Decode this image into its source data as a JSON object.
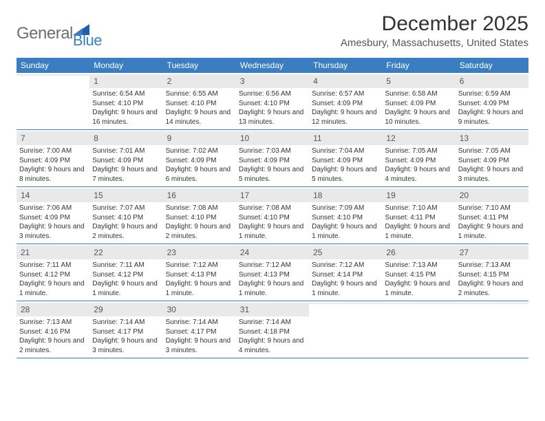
{
  "logo": {
    "text1": "General",
    "text2": "Blue"
  },
  "title": "December 2025",
  "subtitle": "Amesbury, Massachusetts, United States",
  "theme": {
    "header_bg": "#3a7ec1",
    "daynum_bg": "#e9e9e9",
    "rule": "#3a7ec1"
  },
  "days_of_week": [
    "Sunday",
    "Monday",
    "Tuesday",
    "Wednesday",
    "Thursday",
    "Friday",
    "Saturday"
  ],
  "weeks": [
    [
      {
        "n": "",
        "sr": "",
        "ss": "",
        "dl": ""
      },
      {
        "n": "1",
        "sr": "Sunrise: 6:54 AM",
        "ss": "Sunset: 4:10 PM",
        "dl": "Daylight: 9 hours and 16 minutes."
      },
      {
        "n": "2",
        "sr": "Sunrise: 6:55 AM",
        "ss": "Sunset: 4:10 PM",
        "dl": "Daylight: 9 hours and 14 minutes."
      },
      {
        "n": "3",
        "sr": "Sunrise: 6:56 AM",
        "ss": "Sunset: 4:10 PM",
        "dl": "Daylight: 9 hours and 13 minutes."
      },
      {
        "n": "4",
        "sr": "Sunrise: 6:57 AM",
        "ss": "Sunset: 4:09 PM",
        "dl": "Daylight: 9 hours and 12 minutes."
      },
      {
        "n": "5",
        "sr": "Sunrise: 6:58 AM",
        "ss": "Sunset: 4:09 PM",
        "dl": "Daylight: 9 hours and 10 minutes."
      },
      {
        "n": "6",
        "sr": "Sunrise: 6:59 AM",
        "ss": "Sunset: 4:09 PM",
        "dl": "Daylight: 9 hours and 9 minutes."
      }
    ],
    [
      {
        "n": "7",
        "sr": "Sunrise: 7:00 AM",
        "ss": "Sunset: 4:09 PM",
        "dl": "Daylight: 9 hours and 8 minutes."
      },
      {
        "n": "8",
        "sr": "Sunrise: 7:01 AM",
        "ss": "Sunset: 4:09 PM",
        "dl": "Daylight: 9 hours and 7 minutes."
      },
      {
        "n": "9",
        "sr": "Sunrise: 7:02 AM",
        "ss": "Sunset: 4:09 PM",
        "dl": "Daylight: 9 hours and 6 minutes."
      },
      {
        "n": "10",
        "sr": "Sunrise: 7:03 AM",
        "ss": "Sunset: 4:09 PM",
        "dl": "Daylight: 9 hours and 5 minutes."
      },
      {
        "n": "11",
        "sr": "Sunrise: 7:04 AM",
        "ss": "Sunset: 4:09 PM",
        "dl": "Daylight: 9 hours and 5 minutes."
      },
      {
        "n": "12",
        "sr": "Sunrise: 7:05 AM",
        "ss": "Sunset: 4:09 PM",
        "dl": "Daylight: 9 hours and 4 minutes."
      },
      {
        "n": "13",
        "sr": "Sunrise: 7:05 AM",
        "ss": "Sunset: 4:09 PM",
        "dl": "Daylight: 9 hours and 3 minutes."
      }
    ],
    [
      {
        "n": "14",
        "sr": "Sunrise: 7:06 AM",
        "ss": "Sunset: 4:09 PM",
        "dl": "Daylight: 9 hours and 3 minutes."
      },
      {
        "n": "15",
        "sr": "Sunrise: 7:07 AM",
        "ss": "Sunset: 4:10 PM",
        "dl": "Daylight: 9 hours and 2 minutes."
      },
      {
        "n": "16",
        "sr": "Sunrise: 7:08 AM",
        "ss": "Sunset: 4:10 PM",
        "dl": "Daylight: 9 hours and 2 minutes."
      },
      {
        "n": "17",
        "sr": "Sunrise: 7:08 AM",
        "ss": "Sunset: 4:10 PM",
        "dl": "Daylight: 9 hours and 1 minute."
      },
      {
        "n": "18",
        "sr": "Sunrise: 7:09 AM",
        "ss": "Sunset: 4:10 PM",
        "dl": "Daylight: 9 hours and 1 minute."
      },
      {
        "n": "19",
        "sr": "Sunrise: 7:10 AM",
        "ss": "Sunset: 4:11 PM",
        "dl": "Daylight: 9 hours and 1 minute."
      },
      {
        "n": "20",
        "sr": "Sunrise: 7:10 AM",
        "ss": "Sunset: 4:11 PM",
        "dl": "Daylight: 9 hours and 1 minute."
      }
    ],
    [
      {
        "n": "21",
        "sr": "Sunrise: 7:11 AM",
        "ss": "Sunset: 4:12 PM",
        "dl": "Daylight: 9 hours and 1 minute."
      },
      {
        "n": "22",
        "sr": "Sunrise: 7:11 AM",
        "ss": "Sunset: 4:12 PM",
        "dl": "Daylight: 9 hours and 1 minute."
      },
      {
        "n": "23",
        "sr": "Sunrise: 7:12 AM",
        "ss": "Sunset: 4:13 PM",
        "dl": "Daylight: 9 hours and 1 minute."
      },
      {
        "n": "24",
        "sr": "Sunrise: 7:12 AM",
        "ss": "Sunset: 4:13 PM",
        "dl": "Daylight: 9 hours and 1 minute."
      },
      {
        "n": "25",
        "sr": "Sunrise: 7:12 AM",
        "ss": "Sunset: 4:14 PM",
        "dl": "Daylight: 9 hours and 1 minute."
      },
      {
        "n": "26",
        "sr": "Sunrise: 7:13 AM",
        "ss": "Sunset: 4:15 PM",
        "dl": "Daylight: 9 hours and 1 minute."
      },
      {
        "n": "27",
        "sr": "Sunrise: 7:13 AM",
        "ss": "Sunset: 4:15 PM",
        "dl": "Daylight: 9 hours and 2 minutes."
      }
    ],
    [
      {
        "n": "28",
        "sr": "Sunrise: 7:13 AM",
        "ss": "Sunset: 4:16 PM",
        "dl": "Daylight: 9 hours and 2 minutes."
      },
      {
        "n": "29",
        "sr": "Sunrise: 7:14 AM",
        "ss": "Sunset: 4:17 PM",
        "dl": "Daylight: 9 hours and 3 minutes."
      },
      {
        "n": "30",
        "sr": "Sunrise: 7:14 AM",
        "ss": "Sunset: 4:17 PM",
        "dl": "Daylight: 9 hours and 3 minutes."
      },
      {
        "n": "31",
        "sr": "Sunrise: 7:14 AM",
        "ss": "Sunset: 4:18 PM",
        "dl": "Daylight: 9 hours and 4 minutes."
      },
      {
        "n": "",
        "sr": "",
        "ss": "",
        "dl": ""
      },
      {
        "n": "",
        "sr": "",
        "ss": "",
        "dl": ""
      },
      {
        "n": "",
        "sr": "",
        "ss": "",
        "dl": ""
      }
    ]
  ]
}
